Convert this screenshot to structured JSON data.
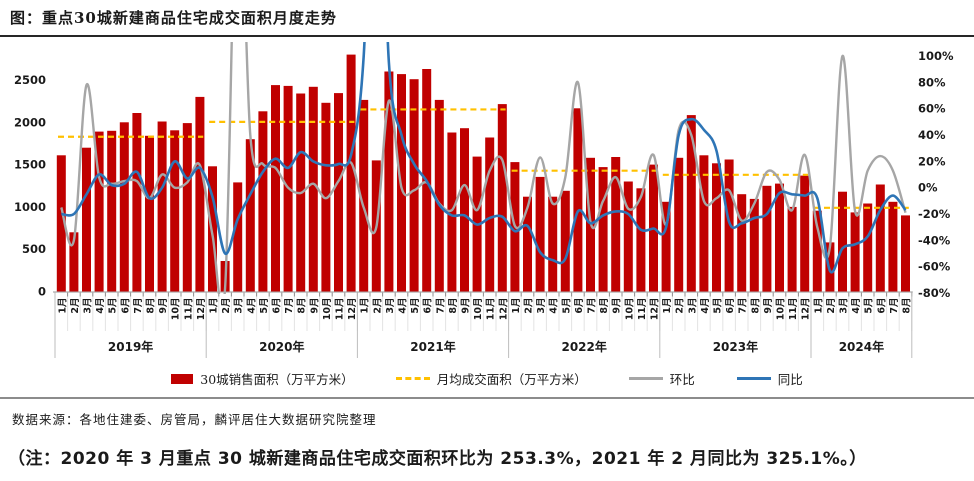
{
  "header": {
    "title": "图：重点30城新建商品住宅成交面积月度走势"
  },
  "legend": {
    "sales": "30城销售面积（万平方米）",
    "avg": "月均成交面积（万平方米）",
    "mom": "环比",
    "yoy": "同比"
  },
  "notes": {
    "source": "数据来源：各地住建委、房管局，麟评居住大数据研究院整理",
    "footnote": "（注：2020 年 3 月重点 30 城新建商品住宅成交面积环比为 253.3%，2021 年 2 月同比为 325.1%。）"
  },
  "colors": {
    "bar": "#C00000",
    "avg": "#FFC000",
    "mom": "#A6A6A6",
    "yoy": "#2E75B6",
    "axis_text": "#1a1a1a",
    "axis_line": "#ABABAB",
    "month_grid": "#E3E3E3",
    "year_grid": "#BDBDBD"
  },
  "chart_data": {
    "type": "bar+line dual-axis combo",
    "title": "重点30城新建商品住宅成交面积月度走势",
    "left_axis": {
      "unit": "万平方米",
      "ticks": [
        0,
        500,
        1000,
        1500,
        2000,
        2500
      ]
    },
    "right_axis": {
      "unit": "%",
      "ticks_pct": [
        100,
        80,
        60,
        40,
        20,
        0,
        -20,
        -40,
        -60,
        -80
      ]
    },
    "legend_position": "bottom",
    "grid": false,
    "clipped_points": [
      {
        "series": "环比",
        "month": "2020年3月",
        "value_pct": 253.3
      },
      {
        "series": "同比",
        "month": "2021年2月",
        "value_pct": 325.1
      }
    ],
    "years": [
      {
        "label": "2019年",
        "months": [
          "1月",
          "2月",
          "3月",
          "4月",
          "5月",
          "6月",
          "7月",
          "8月",
          "9月",
          "10月",
          "11月",
          "12月"
        ],
        "sales": [
          1610,
          700,
          1700,
          1890,
          1900,
          2000,
          2110,
          1840,
          2010,
          1905,
          1990,
          2300
        ],
        "monthly_avg": 1829,
        "mom_pct": [
          -15,
          -40,
          78,
          8,
          3,
          5,
          5,
          -8,
          10,
          0,
          4,
          17
        ],
        "yoy_pct": [
          -20,
          -20,
          -5,
          10,
          2,
          3,
          12,
          -8,
          0,
          20,
          7,
          15
        ]
      },
      {
        "label": "2020年",
        "months": [
          "1月",
          "2月",
          "3月",
          "4月",
          "5月",
          "6月",
          "7月",
          "8月",
          "9月",
          "10月",
          "11月",
          "12月"
        ],
        "sales": [
          1480,
          360,
          1290,
          1800,
          2130,
          2440,
          2430,
          2340,
          2420,
          2230,
          2345,
          2800
        ],
        "monthly_avg": 2005,
        "mom_pct": [
          -36,
          -76,
          253.3,
          40,
          18,
          15,
          0,
          -4,
          3,
          -8,
          5,
          19
        ],
        "yoy_pct": [
          -7,
          -50,
          -24,
          -5,
          12,
          22,
          15,
          27,
          20,
          17,
          18,
          25
        ]
      },
      {
        "label": "2021年",
        "months": [
          "1月",
          "2月",
          "3月",
          "4月",
          "5月",
          "6月",
          "7月",
          "8月",
          "9月",
          "10月",
          "11月",
          "12月"
        ],
        "sales": [
          2265,
          1550,
          2600,
          2570,
          2510,
          2630,
          2265,
          1880,
          1930,
          1595,
          1820,
          2215
        ],
        "monthly_avg": 2152,
        "mom_pct": [
          -15,
          -30,
          66,
          0,
          -2,
          4,
          -12,
          -17,
          2,
          -17,
          13,
          21
        ],
        "yoy_pct": [
          100,
          325.1,
          95,
          40,
          18,
          5,
          -13,
          -21,
          -21,
          -28,
          -23,
          -22
        ]
      },
      {
        "label": "2022年",
        "months": [
          "1月",
          "2月",
          "3月",
          "4月",
          "5月",
          "6月",
          "7月",
          "8月",
          "9月",
          "10月",
          "11月",
          "12月"
        ],
        "sales": [
          1530,
          1120,
          1355,
          1120,
          1190,
          2165,
          1580,
          1470,
          1590,
          1300,
          1220,
          1500
        ],
        "monthly_avg": 1428,
        "mom_pct": [
          -29,
          -15,
          23,
          -12,
          8,
          80,
          -26,
          -10,
          8,
          -16,
          -7,
          25
        ],
        "yoy_pct": [
          -33,
          -29,
          -49,
          -55,
          -54,
          -18,
          -27,
          -21,
          -18,
          -20,
          -32,
          -31
        ]
      },
      {
        "label": "2023年",
        "months": [
          "1月",
          "2月",
          "3月",
          "4月",
          "5月",
          "6月",
          "7月",
          "8月",
          "9月",
          "10月",
          "11月",
          "12月"
        ],
        "sales": [
          1060,
          1580,
          2085,
          1610,
          1515,
          1560,
          1150,
          1095,
          1250,
          1275,
          1000,
          1370
        ],
        "monthly_avg": 1379,
        "mom_pct": [
          -28,
          44,
          40,
          -10,
          -8,
          -2,
          -25,
          -12,
          12,
          6,
          -17,
          25
        ],
        "yoy_pct": [
          -30,
          40,
          52,
          44,
          28,
          -26,
          -27,
          -23,
          -20,
          -4,
          -5,
          -6
        ]
      },
      {
        "label": "2024年",
        "months": [
          "1月",
          "2月",
          "3月",
          "4月",
          "5月",
          "6月",
          "7月",
          "8月"
        ],
        "sales": [
          955,
          580,
          1180,
          935,
          1040,
          1265,
          1060,
          900
        ],
        "monthly_avg": 989,
        "mom_pct": [
          -30,
          -45,
          100,
          -18,
          13,
          24,
          13,
          -19
        ],
        "yoy_pct": [
          -8,
          -63,
          -46,
          -43,
          -37,
          -17,
          -6,
          -17
        ]
      }
    ]
  }
}
